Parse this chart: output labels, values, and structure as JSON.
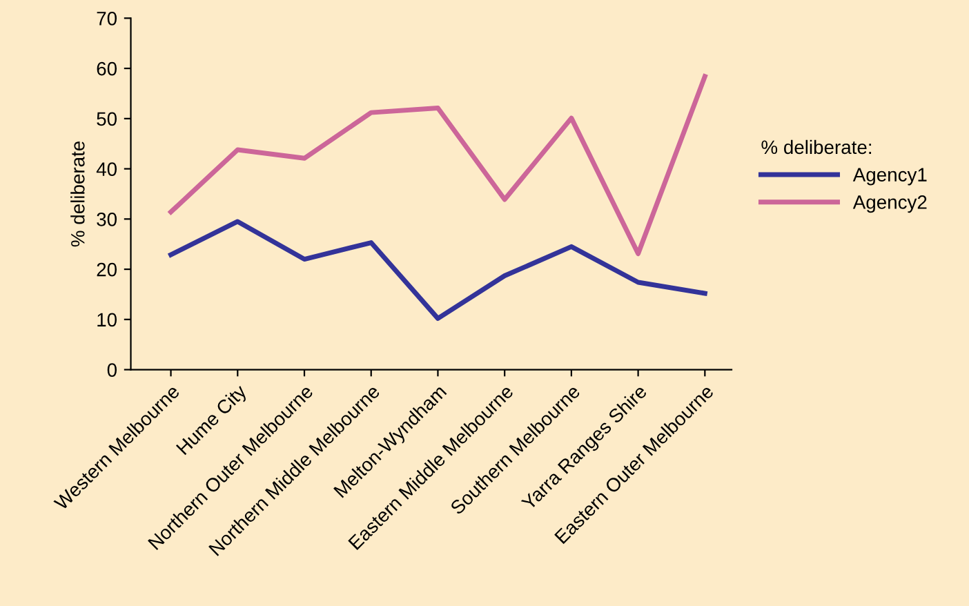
{
  "chart_data": {
    "type": "line",
    "ylabel": "% deliberate",
    "legend_title": "% deliberate:",
    "legend": "right",
    "categories": [
      "Western Melbourne",
      "Hume City",
      "Northern Outer Melbourne",
      "Northern Middle Melbourne",
      "Melton-Wyndham",
      "Eastern Middle Melbourne",
      "Southern Melbourne",
      "Yarra Ranges Shire",
      "Eastern Outer Melbourne"
    ],
    "series": [
      {
        "name": "Agency1",
        "color": "#333399",
        "values": [
          22.9,
          29.5,
          22.0,
          25.3,
          10.2,
          18.7,
          24.5,
          17.4,
          15.2
        ]
      },
      {
        "name": "Agency2",
        "color": "#cc6699",
        "values": [
          31.4,
          43.8,
          42.1,
          51.2,
          52.1,
          33.9,
          50.1,
          23.1,
          58.4
        ]
      }
    ],
    "ylim": [
      0,
      70
    ],
    "yticks": [
      0,
      10,
      20,
      30,
      40,
      50,
      60,
      70
    ],
    "grid": false,
    "marker": "none",
    "line_style": "solid"
  }
}
